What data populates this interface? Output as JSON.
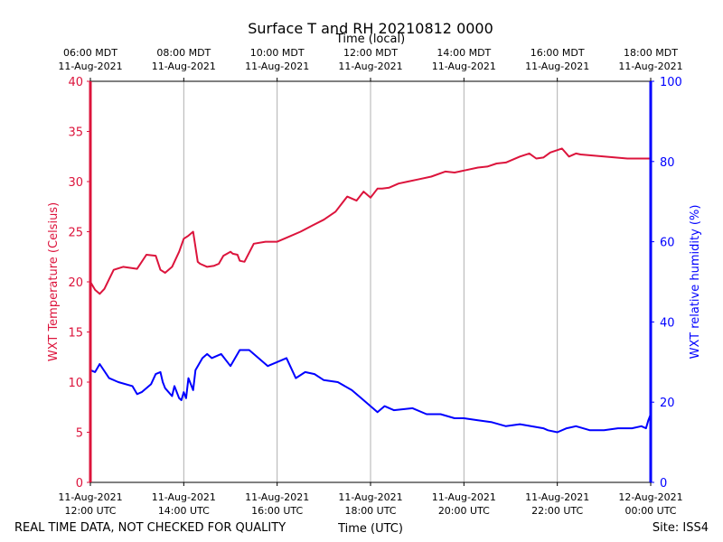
{
  "chart_data": {
    "type": "line",
    "title": "Surface T and RH 20210812 0000",
    "top_axis_label": "Time (local)",
    "xlabel": "Time (UTC)",
    "ylabel_left": "WXT Temperature (Celsius)",
    "ylabel_right": "WXT relative humidity (%)",
    "footer_left": "REAL TIME DATA, NOT CHECKED FOR QUALITY",
    "footer_right": "Site: ISS4",
    "x_range_hours_utc": [
      12,
      24
    ],
    "ylim_left": [
      0,
      40
    ],
    "ylim_right": [
      0,
      100
    ],
    "yticks_left": [
      0,
      5,
      10,
      15,
      20,
      25,
      30,
      35,
      40
    ],
    "yticks_right": [
      0,
      20,
      40,
      60,
      80,
      100
    ],
    "grid": "vertical",
    "colors": {
      "temperature": "#dc143c",
      "humidity": "#0000ff",
      "grid": "#b0b0b0",
      "axis": "#000000"
    },
    "bottom_ticks": [
      {
        "hour": 12,
        "line1": "11-Aug-2021",
        "line2": "12:00 UTC"
      },
      {
        "hour": 14,
        "line1": "11-Aug-2021",
        "line2": "14:00 UTC"
      },
      {
        "hour": 16,
        "line1": "11-Aug-2021",
        "line2": "16:00 UTC"
      },
      {
        "hour": 18,
        "line1": "11-Aug-2021",
        "line2": "18:00 UTC"
      },
      {
        "hour": 20,
        "line1": "11-Aug-2021",
        "line2": "20:00 UTC"
      },
      {
        "hour": 22,
        "line1": "11-Aug-2021",
        "line2": "22:00 UTC"
      },
      {
        "hour": 24,
        "line1": "12-Aug-2021",
        "line2": "00:00 UTC"
      }
    ],
    "top_ticks": [
      {
        "hour": 12,
        "line1": "06:00 MDT",
        "line2": "11-Aug-2021"
      },
      {
        "hour": 14,
        "line1": "08:00 MDT",
        "line2": "11-Aug-2021"
      },
      {
        "hour": 16,
        "line1": "10:00 MDT",
        "line2": "11-Aug-2021"
      },
      {
        "hour": 18,
        "line1": "12:00 MDT",
        "line2": "11-Aug-2021"
      },
      {
        "hour": 20,
        "line1": "14:00 MDT",
        "line2": "11-Aug-2021"
      },
      {
        "hour": 22,
        "line1": "16:00 MDT",
        "line2": "11-Aug-2021"
      },
      {
        "hour": 24,
        "line1": "18:00 MDT",
        "line2": "11-Aug-2021"
      }
    ],
    "series": [
      {
        "name": "WXT Temperature (Celsius)",
        "axis": "left",
        "x": [
          12.0,
          12.1,
          12.2,
          12.3,
          12.5,
          12.7,
          13.0,
          13.2,
          13.4,
          13.5,
          13.6,
          13.75,
          13.9,
          14.0,
          14.1,
          14.2,
          14.3,
          14.35,
          14.5,
          14.65,
          14.75,
          14.85,
          15.0,
          15.05,
          15.15,
          15.2,
          15.3,
          15.5,
          15.75,
          16.0,
          16.2,
          16.5,
          16.75,
          17.0,
          17.25,
          17.5,
          17.7,
          17.85,
          18.0,
          18.15,
          18.25,
          18.4,
          18.6,
          18.8,
          19.0,
          19.3,
          19.6,
          19.8,
          20.0,
          20.3,
          20.5,
          20.7,
          20.9,
          21.2,
          21.4,
          21.55,
          21.7,
          21.85,
          22.1,
          22.25,
          22.4,
          22.5,
          22.75,
          23.0,
          23.25,
          23.5,
          23.75,
          24.0
        ],
        "values": [
          20.0,
          19.2,
          18.8,
          19.3,
          21.2,
          21.5,
          21.3,
          22.7,
          22.6,
          21.2,
          20.9,
          21.5,
          23.0,
          24.3,
          24.6,
          25.0,
          22.0,
          21.8,
          21.5,
          21.6,
          21.8,
          22.6,
          23.0,
          22.8,
          22.7,
          22.1,
          22.0,
          23.8,
          24.0,
          24.0,
          24.4,
          25.0,
          25.6,
          26.2,
          27.0,
          28.5,
          28.1,
          29.0,
          28.4,
          29.3,
          29.3,
          29.4,
          29.8,
          30.0,
          30.2,
          30.5,
          31.0,
          30.9,
          31.1,
          31.4,
          31.5,
          31.8,
          31.9,
          32.5,
          32.8,
          32.3,
          32.4,
          32.9,
          33.3,
          32.5,
          32.8,
          32.7,
          32.6,
          32.5,
          32.4,
          32.3,
          32.3,
          32.3
        ]
      },
      {
        "name": "WXT relative humidity (%)",
        "axis": "right",
        "x": [
          12.0,
          12.1,
          12.2,
          12.4,
          12.6,
          12.9,
          13.0,
          13.1,
          13.3,
          13.4,
          13.5,
          13.55,
          13.6,
          13.75,
          13.8,
          13.9,
          13.95,
          14.0,
          14.05,
          14.1,
          14.2,
          14.25,
          14.4,
          14.5,
          14.6,
          14.8,
          15.0,
          15.2,
          15.4,
          15.5,
          15.8,
          16.0,
          16.2,
          16.4,
          16.6,
          16.8,
          17.0,
          17.3,
          17.6,
          17.8,
          18.0,
          18.15,
          18.3,
          18.5,
          18.9,
          19.2,
          19.5,
          19.8,
          20.0,
          20.3,
          20.6,
          20.9,
          21.2,
          21.7,
          21.8,
          22.0,
          22.2,
          22.4,
          22.7,
          23.0,
          23.3,
          23.6,
          23.8,
          23.9,
          23.95,
          24.0
        ],
        "values": [
          28.0,
          27.5,
          29.5,
          26.0,
          25.0,
          24.0,
          22.0,
          22.5,
          24.5,
          27.0,
          27.5,
          25.0,
          23.5,
          21.5,
          24.0,
          21.0,
          20.5,
          22.5,
          21.0,
          26.0,
          23.0,
          28.0,
          31.0,
          32.0,
          31.0,
          32.0,
          29.0,
          33.0,
          33.0,
          32.0,
          29.0,
          30.0,
          31.0,
          26.0,
          27.5,
          27.0,
          25.5,
          25.0,
          23.0,
          21.0,
          19.0,
          17.5,
          19.0,
          18.0,
          18.5,
          17.0,
          17.0,
          16.0,
          16.0,
          15.5,
          15.0,
          14.0,
          14.5,
          13.5,
          13.0,
          12.5,
          13.5,
          14.0,
          13.0,
          13.0,
          13.5,
          13.5,
          14.0,
          13.5,
          15.5,
          17.0
        ]
      }
    ]
  }
}
